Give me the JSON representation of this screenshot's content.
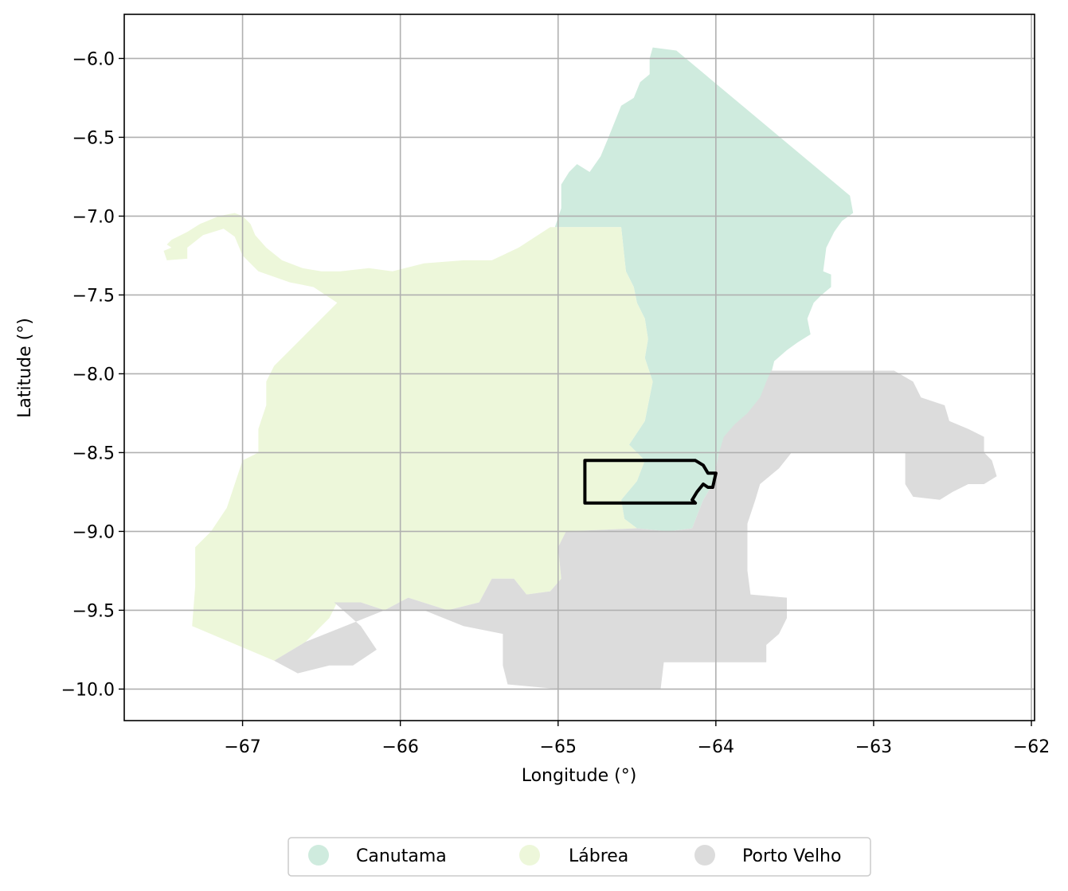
{
  "map": {
    "xlabel": "Longitude (°)",
    "ylabel": "Latitude (°)",
    "xlim": [
      -67.75,
      -61.98
    ],
    "ylim": [
      -10.2,
      -5.72
    ],
    "x_ticks": [
      {
        "value": -67,
        "label": "−67"
      },
      {
        "value": -66,
        "label": "−66"
      },
      {
        "value": -65,
        "label": "−65"
      },
      {
        "value": -64,
        "label": "−64"
      },
      {
        "value": -63,
        "label": "−63"
      },
      {
        "value": -62,
        "label": "−62"
      }
    ],
    "y_ticks": [
      {
        "value": -6.0,
        "label": "−6.0"
      },
      {
        "value": -6.5,
        "label": "−6.5"
      },
      {
        "value": -7.0,
        "label": "−7.0"
      },
      {
        "value": -7.5,
        "label": "−7.5"
      },
      {
        "value": -8.0,
        "label": "−8.0"
      },
      {
        "value": -8.5,
        "label": "−8.5"
      },
      {
        "value": -9.0,
        "label": "−9.0"
      },
      {
        "value": -9.5,
        "label": "−9.5"
      },
      {
        "value": -10.0,
        "label": "−10.0"
      }
    ],
    "grid": true,
    "legend_position": "bottom-center, outside plot",
    "regions": [
      {
        "name": "Canutama",
        "color": "#cfebde",
        "boundary": [
          [
            -64.4,
            -5.93
          ],
          [
            -64.25,
            -5.95
          ],
          [
            -63.15,
            -6.87
          ],
          [
            -63.13,
            -6.98
          ],
          [
            -63.2,
            -7.03
          ],
          [
            -63.25,
            -7.1
          ],
          [
            -63.3,
            -7.2
          ],
          [
            -63.32,
            -7.35
          ],
          [
            -63.27,
            -7.37
          ],
          [
            -63.27,
            -7.45
          ],
          [
            -63.33,
            -7.5
          ],
          [
            -63.38,
            -7.55
          ],
          [
            -63.42,
            -7.65
          ],
          [
            -63.4,
            -7.75
          ],
          [
            -63.48,
            -7.8
          ],
          [
            -63.55,
            -7.85
          ],
          [
            -63.63,
            -7.92
          ],
          [
            -63.65,
            -8.0
          ],
          [
            -63.68,
            -8.1
          ],
          [
            -63.75,
            -8.25
          ],
          [
            -63.85,
            -8.32
          ],
          [
            -63.92,
            -8.42
          ],
          [
            -63.98,
            -8.5
          ],
          [
            -64.0,
            -8.6
          ],
          [
            -64.02,
            -8.7
          ],
          [
            -64.08,
            -8.8
          ],
          [
            -64.12,
            -8.9
          ],
          [
            -64.15,
            -8.98
          ],
          [
            -64.3,
            -9.0
          ],
          [
            -64.5,
            -8.98
          ],
          [
            -64.58,
            -8.92
          ],
          [
            -64.6,
            -8.8
          ],
          [
            -64.5,
            -8.68
          ],
          [
            -64.45,
            -8.55
          ],
          [
            -64.55,
            -8.45
          ],
          [
            -64.45,
            -8.3
          ],
          [
            -64.4,
            -8.05
          ],
          [
            -64.45,
            -7.9
          ],
          [
            -64.43,
            -7.78
          ],
          [
            -64.45,
            -7.65
          ],
          [
            -64.5,
            -7.55
          ],
          [
            -64.52,
            -7.45
          ],
          [
            -64.57,
            -7.35
          ],
          [
            -64.6,
            -7.07
          ],
          [
            -65.02,
            -7.07
          ],
          [
            -64.98,
            -6.95
          ],
          [
            -64.98,
            -6.8
          ],
          [
            -64.93,
            -6.72
          ],
          [
            -64.88,
            -6.67
          ],
          [
            -64.8,
            -6.72
          ],
          [
            -64.73,
            -6.62
          ],
          [
            -64.68,
            -6.5
          ],
          [
            -64.6,
            -6.3
          ],
          [
            -64.52,
            -6.25
          ],
          [
            -64.48,
            -6.15
          ],
          [
            -64.42,
            -6.1
          ],
          [
            -64.42,
            -6.0
          ]
        ]
      },
      {
        "name": "Lábrea",
        "color": "#edf7da",
        "boundary": [
          [
            -67.45,
            -7.2
          ],
          [
            -67.48,
            -7.18
          ],
          [
            -67.45,
            -7.15
          ],
          [
            -67.35,
            -7.1
          ],
          [
            -67.27,
            -7.05
          ],
          [
            -67.15,
            -7.0
          ],
          [
            -67.05,
            -6.98
          ],
          [
            -67.0,
            -7.0
          ],
          [
            -66.95,
            -7.05
          ],
          [
            -66.92,
            -7.12
          ],
          [
            -66.85,
            -7.2
          ],
          [
            -66.75,
            -7.28
          ],
          [
            -66.62,
            -7.33
          ],
          [
            -66.5,
            -7.35
          ],
          [
            -66.38,
            -7.35
          ],
          [
            -66.2,
            -7.33
          ],
          [
            -66.05,
            -7.35
          ],
          [
            -65.85,
            -7.3
          ],
          [
            -65.6,
            -7.28
          ],
          [
            -65.42,
            -7.28
          ],
          [
            -65.25,
            -7.2
          ],
          [
            -65.05,
            -7.07
          ],
          [
            -64.6,
            -7.07
          ],
          [
            -64.57,
            -7.35
          ],
          [
            -64.52,
            -7.45
          ],
          [
            -64.5,
            -7.55
          ],
          [
            -64.45,
            -7.65
          ],
          [
            -64.43,
            -7.78
          ],
          [
            -64.45,
            -7.9
          ],
          [
            -64.4,
            -8.05
          ],
          [
            -64.45,
            -8.3
          ],
          [
            -64.55,
            -8.45
          ],
          [
            -64.45,
            -8.55
          ],
          [
            -64.5,
            -8.68
          ],
          [
            -64.6,
            -8.8
          ],
          [
            -64.58,
            -8.92
          ],
          [
            -64.5,
            -8.98
          ],
          [
            -64.95,
            -9.0
          ],
          [
            -65.0,
            -9.1
          ],
          [
            -64.98,
            -9.3
          ],
          [
            -65.05,
            -9.38
          ],
          [
            -65.2,
            -9.4
          ],
          [
            -65.28,
            -9.3
          ],
          [
            -65.42,
            -9.3
          ],
          [
            -65.5,
            -9.45
          ],
          [
            -65.7,
            -9.5
          ],
          [
            -65.95,
            -9.42
          ],
          [
            -66.1,
            -9.5
          ],
          [
            -66.25,
            -9.45
          ],
          [
            -66.4,
            -9.45
          ],
          [
            -66.45,
            -9.55
          ],
          [
            -66.6,
            -9.7
          ],
          [
            -66.8,
            -9.82
          ],
          [
            -67.32,
            -9.6
          ],
          [
            -67.3,
            -9.35
          ],
          [
            -67.3,
            -9.1
          ],
          [
            -67.2,
            -9.0
          ],
          [
            -67.1,
            -8.85
          ],
          [
            -67.05,
            -8.7
          ],
          [
            -67.0,
            -8.55
          ],
          [
            -66.9,
            -8.5
          ],
          [
            -66.9,
            -8.35
          ],
          [
            -66.85,
            -8.2
          ],
          [
            -66.85,
            -8.05
          ],
          [
            -66.8,
            -7.95
          ],
          [
            -66.7,
            -7.85
          ],
          [
            -66.6,
            -7.75
          ],
          [
            -66.5,
            -7.65
          ],
          [
            -66.4,
            -7.55
          ],
          [
            -66.55,
            -7.45
          ],
          [
            -66.7,
            -7.42
          ],
          [
            -66.9,
            -7.35
          ],
          [
            -67.0,
            -7.25
          ],
          [
            -67.05,
            -7.13
          ],
          [
            -67.12,
            -7.08
          ],
          [
            -67.25,
            -7.12
          ],
          [
            -67.35,
            -7.2
          ],
          [
            -67.35,
            -7.27
          ],
          [
            -67.48,
            -7.28
          ],
          [
            -67.5,
            -7.22
          ]
        ]
      },
      {
        "name": "Porto Velho",
        "color": "#dcdcdc",
        "boundary": [
          [
            -63.65,
            -7.98
          ],
          [
            -62.87,
            -7.98
          ],
          [
            -62.75,
            -8.05
          ],
          [
            -62.7,
            -8.15
          ],
          [
            -62.55,
            -8.2
          ],
          [
            -62.52,
            -8.3
          ],
          [
            -62.4,
            -8.35
          ],
          [
            -62.3,
            -8.4
          ],
          [
            -62.3,
            -8.5
          ],
          [
            -62.25,
            -8.55
          ],
          [
            -62.22,
            -8.65
          ],
          [
            -62.3,
            -8.7
          ],
          [
            -62.4,
            -8.7
          ],
          [
            -62.5,
            -8.75
          ],
          [
            -62.58,
            -8.8
          ],
          [
            -62.75,
            -8.78
          ],
          [
            -62.8,
            -8.7
          ],
          [
            -62.8,
            -8.5
          ],
          [
            -63.52,
            -8.5
          ],
          [
            -63.6,
            -8.6
          ],
          [
            -63.72,
            -8.7
          ],
          [
            -63.75,
            -8.8
          ],
          [
            -63.8,
            -8.95
          ],
          [
            -63.8,
            -9.25
          ],
          [
            -63.78,
            -9.4
          ],
          [
            -63.55,
            -9.42
          ],
          [
            -63.55,
            -9.55
          ],
          [
            -63.6,
            -9.65
          ],
          [
            -63.68,
            -9.72
          ],
          [
            -63.68,
            -9.83
          ],
          [
            -64.33,
            -9.83
          ],
          [
            -64.35,
            -10.0
          ],
          [
            -65.0,
            -10.0
          ],
          [
            -65.32,
            -9.97
          ],
          [
            -65.35,
            -9.85
          ],
          [
            -65.35,
            -9.65
          ],
          [
            -65.6,
            -9.6
          ],
          [
            -65.85,
            -9.5
          ],
          [
            -66.1,
            -9.5
          ],
          [
            -66.35,
            -9.6
          ],
          [
            -66.6,
            -9.7
          ],
          [
            -66.8,
            -9.82
          ],
          [
            -66.65,
            -9.9
          ],
          [
            -66.45,
            -9.85
          ],
          [
            -66.3,
            -9.85
          ],
          [
            -66.15,
            -9.75
          ],
          [
            -66.25,
            -9.6
          ],
          [
            -66.42,
            -9.45
          ],
          [
            -66.25,
            -9.45
          ],
          [
            -66.1,
            -9.5
          ],
          [
            -65.95,
            -9.42
          ],
          [
            -65.7,
            -9.5
          ],
          [
            -65.5,
            -9.45
          ],
          [
            -65.42,
            -9.3
          ],
          [
            -65.28,
            -9.3
          ],
          [
            -65.2,
            -9.4
          ],
          [
            -65.05,
            -9.38
          ],
          [
            -64.98,
            -9.3
          ],
          [
            -65.0,
            -9.1
          ],
          [
            -64.95,
            -9.0
          ],
          [
            -64.5,
            -8.98
          ],
          [
            -64.3,
            -9.0
          ],
          [
            -64.15,
            -8.98
          ],
          [
            -64.12,
            -8.9
          ],
          [
            -64.08,
            -8.8
          ],
          [
            -64.02,
            -8.7
          ],
          [
            -64.0,
            -8.6
          ],
          [
            -63.98,
            -8.5
          ],
          [
            -63.95,
            -8.4
          ],
          [
            -63.88,
            -8.32
          ],
          [
            -63.8,
            -8.25
          ],
          [
            -63.72,
            -8.15
          ],
          [
            -63.68,
            -8.05
          ]
        ]
      }
    ],
    "highlight_outline": {
      "color": "#000000",
      "boundary": [
        [
          -64.83,
          -8.55
        ],
        [
          -64.13,
          -8.55
        ],
        [
          -64.08,
          -8.58
        ],
        [
          -64.05,
          -8.63
        ],
        [
          -64.0,
          -8.63
        ],
        [
          -64.02,
          -8.72
        ],
        [
          -64.05,
          -8.72
        ],
        [
          -64.08,
          -8.7
        ],
        [
          -64.12,
          -8.75
        ],
        [
          -64.15,
          -8.8
        ],
        [
          -64.13,
          -8.82
        ],
        [
          -64.83,
          -8.82
        ]
      ]
    }
  }
}
